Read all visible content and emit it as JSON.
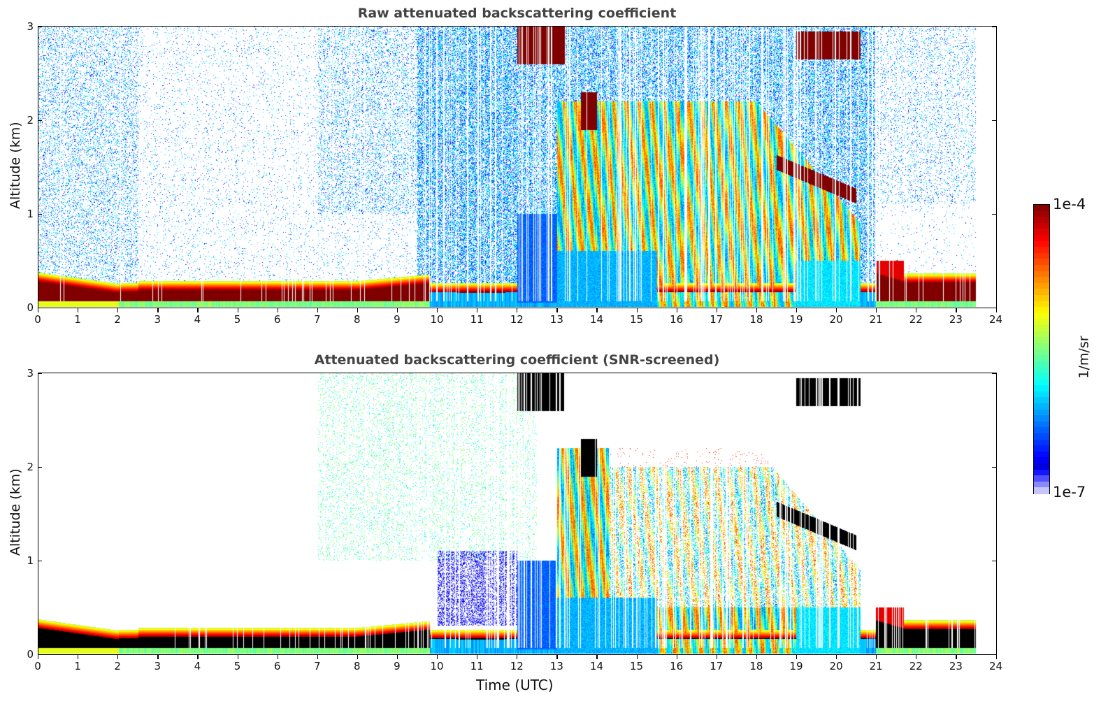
{
  "chart_data": [
    {
      "type": "heatmap",
      "title": "Raw attenuated backscattering coefficient",
      "xlabel": "",
      "ylabel": "Altitude (km)",
      "xlim": [
        0,
        24
      ],
      "ylim": [
        0,
        3
      ],
      "xticks": [
        "0",
        "1",
        "2",
        "3",
        "4",
        "5",
        "6",
        "7",
        "8",
        "9",
        "10",
        "11",
        "12",
        "13",
        "14",
        "15",
        "16",
        "17",
        "18",
        "19",
        "20",
        "21",
        "22",
        "23",
        "24"
      ],
      "yticks": [
        "0",
        "1",
        "2",
        "3"
      ],
      "data_end_time": 23.5,
      "features": [
        {
          "name": "boundary layer aerosol",
          "time_range": [
            0,
            23.5
          ],
          "altitude_km": [
            0.1,
            0.35
          ],
          "level": "1e-4"
        },
        {
          "name": "high cloud",
          "time_range": [
            12,
            13.2
          ],
          "altitude_km": [
            2.6,
            3.0
          ],
          "level": "1e-4"
        },
        {
          "name": "cloud",
          "time_range": [
            19,
            20.5
          ],
          "altitude_km": [
            2.7,
            3.0
          ],
          "level": "1e-4"
        },
        {
          "name": "descending cloud layer",
          "time_range": [
            18.5,
            20.5
          ],
          "altitude_km": [
            1.2,
            1.6
          ],
          "level": "1e-4"
        },
        {
          "name": "precipitation streaks",
          "time_range": [
            13,
            20.5
          ],
          "altitude_km": [
            0,
            2.2
          ],
          "level": "1e-5"
        }
      ]
    },
    {
      "type": "heatmap",
      "title": "Attenuated backscattering coefficient (SNR-screened)",
      "xlabel": "Time (UTC)",
      "ylabel": "Altitude (km)",
      "xlim": [
        0,
        24
      ],
      "ylim": [
        0,
        3
      ],
      "xticks": [
        "0",
        "1",
        "2",
        "3",
        "4",
        "5",
        "6",
        "7",
        "8",
        "9",
        "10",
        "11",
        "12",
        "13",
        "14",
        "15",
        "16",
        "17",
        "18",
        "19",
        "20",
        "21",
        "22",
        "23",
        "24"
      ],
      "yticks": [
        "0",
        "1",
        "2",
        "3"
      ],
      "data_end_time": 23.5,
      "features": [
        {
          "name": "boundary layer aerosol (saturated)",
          "time_range": [
            0,
            23.5
          ],
          "altitude_km": [
            0.1,
            0.3
          ],
          "level": "over 1e-4"
        },
        {
          "name": "high cloud (saturated)",
          "time_range": [
            12,
            13
          ],
          "altitude_km": [
            2.6,
            3.0
          ],
          "level": "over 1e-4"
        },
        {
          "name": "precipitation streaks",
          "time_range": [
            14,
            20.5
          ],
          "altitude_km": [
            0,
            2.0
          ],
          "level": "1e-5"
        }
      ]
    }
  ],
  "colorbar": {
    "label": "1/m/sr",
    "max_label": "1e-4",
    "min_label": "1e-7",
    "colormap": "jet",
    "scale": "log"
  }
}
